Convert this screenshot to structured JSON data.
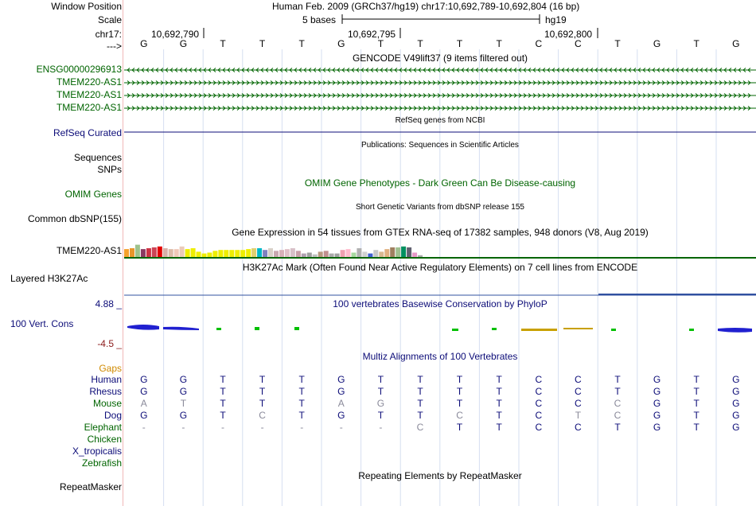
{
  "colors": {
    "green": "#006400",
    "navy": "#0c0c78",
    "orange": "#d08a00",
    "grey": "#8a8a9a",
    "red": "#8b1a1a",
    "bright_green": "#00c000"
  },
  "header": {
    "window_position_label": "Window Position",
    "assembly_position": "Human Feb. 2009 (GRCh37/hg19)   chr17:10,692,789-10,692,804 (16 bp)",
    "scale_label": "Scale",
    "scale_text": "5 bases",
    "scale_assembly": "hg19",
    "chrom_label": "chr17:",
    "ticks": [
      "10,692,790",
      "10,692,795",
      "10,692,800"
    ],
    "strand_label": "--->",
    "bases": [
      "G",
      "G",
      "T",
      "T",
      "T",
      "G",
      "T",
      "T",
      "T",
      "T",
      "C",
      "C",
      "T",
      "G",
      "T",
      "G"
    ]
  },
  "gencode": {
    "title": "GENCODE V49lift37 (9 items filtered out)",
    "items": [
      {
        "label": "ENSG00000296913",
        "direction": "reverse"
      },
      {
        "label": "TMEM220-AS1",
        "direction": "forward"
      },
      {
        "label": "TMEM220-AS1",
        "direction": "forward"
      },
      {
        "label": "TMEM220-AS1",
        "direction": "forward"
      }
    ]
  },
  "refseq": {
    "title": "RefSeq genes from NCBI",
    "label": "RefSeq Curated"
  },
  "publications": {
    "title": "Publications: Sequences in Scientific Articles",
    "labels": [
      "Sequences",
      "SNPs"
    ]
  },
  "omim": {
    "title": "OMIM Gene Phenotypes - Dark Green Can Be Disease-causing",
    "label": "OMIM Genes"
  },
  "dbsnp": {
    "title": "Short Genetic Variants from dbSNP release 155",
    "label": "Common dbSNP(155)"
  },
  "gtex": {
    "title": "Gene Expression in 54 tissues from GTEx RNA-seq of 17382 samples, 948 donors (V8, Aug 2019)",
    "label": "TMEM220-AS1",
    "tissue_values": [
      0.45,
      0.5,
      0.7,
      0.45,
      0.5,
      0.55,
      0.6,
      0.5,
      0.45,
      0.45,
      0.6,
      0.45,
      0.5,
      0.3,
      0.2,
      0.25,
      0.35,
      0.4,
      0.4,
      0.4,
      0.4,
      0.4,
      0.45,
      0.5,
      0.5,
      0.4,
      0.5,
      0.35,
      0.4,
      0.45,
      0.5,
      0.35,
      0.2,
      0.25,
      0.15,
      0.3,
      0.35,
      0.2,
      0.2,
      0.4,
      0.45,
      0.25,
      0.5,
      0.3,
      0.2,
      0.4,
      0.3,
      0.45,
      0.55,
      0.55,
      0.6,
      0.55,
      0.25,
      0.1
    ],
    "tissue_colors": [
      "#f5a12b",
      "#e8962b",
      "#9ec28c",
      "#8b3a62",
      "#cc3344",
      "#cc4455",
      "#e20000",
      "#d8b0a8",
      "#ddbba8",
      "#f0c9b8",
      "#ebcab8",
      "#eeee00",
      "#eeee00",
      "#eeee00",
      "#eeee00",
      "#eeee00",
      "#eeee00",
      "#eeee00",
      "#eeee00",
      "#eeee00",
      "#eeee00",
      "#eeee00",
      "#eeee00",
      "#e0d070",
      "#00b8c8",
      "#8080c0",
      "#d8d0c8",
      "#c8a8b0",
      "#d8b0b8",
      "#e0c0c8",
      "#d8c0c8",
      "#c8a0a8",
      "#b0a0b0",
      "#a0a0a0",
      "#c0c0c0",
      "#b89880",
      "#c09090",
      "#aaaaaa",
      "#a0a0a0",
      "#f0a0b0",
      "#ffbbcc",
      "#a8d8a0",
      "#b0b0b0",
      "#d0d0d0",
      "#4060d0",
      "#c8c8c8",
      "#d8b890",
      "#e0b080",
      "#a08060",
      "#a0c090",
      "#009060",
      "#606070",
      "#e898c8",
      "#aaaaaa"
    ]
  },
  "h3k27ac": {
    "title": "H3K27Ac Mark (Often Found Near Active Regulatory Elements) on 7 cell lines from ENCODE",
    "label": "Layered H3K27Ac"
  },
  "phylop": {
    "title": "100 vertebrates Basewise Conservation by PhyloP",
    "max_label": "4.88 _",
    "label": "100 Vert. Cons",
    "min_label": "-4.5 _"
  },
  "multiz": {
    "title": "Multiz Alignments of 100 Vertebrates",
    "gaps_label": "Gaps",
    "species": [
      {
        "name": "Human",
        "row": "GGTTTGTTTTCCTGTG",
        "muted": ""
      },
      {
        "name": "Rhesus",
        "row": "GGTTTGTTTTCCTGTG",
        "muted": ""
      },
      {
        "name": "Mouse",
        "row": "ATTTTAGTTTCCCGTG",
        "muted": "1100011000001000"
      },
      {
        "name": "Dog",
        "row": "GGTCTGTTCTCTCGTG",
        "muted": "0001000010011000"
      },
      {
        "name": "Elephant",
        "row": "-------CTTCCTGTG",
        "muted": "1111111100000000"
      },
      {
        "name": "Chicken",
        "row": "",
        "muted": ""
      },
      {
        "name": "X_tropicalis",
        "row": "",
        "muted": ""
      },
      {
        "name": "Zebrafish",
        "row": "",
        "muted": ""
      }
    ]
  },
  "repeatmasker": {
    "title": "Repeating Elements by RepeatMasker",
    "label": "RepeatMasker"
  }
}
